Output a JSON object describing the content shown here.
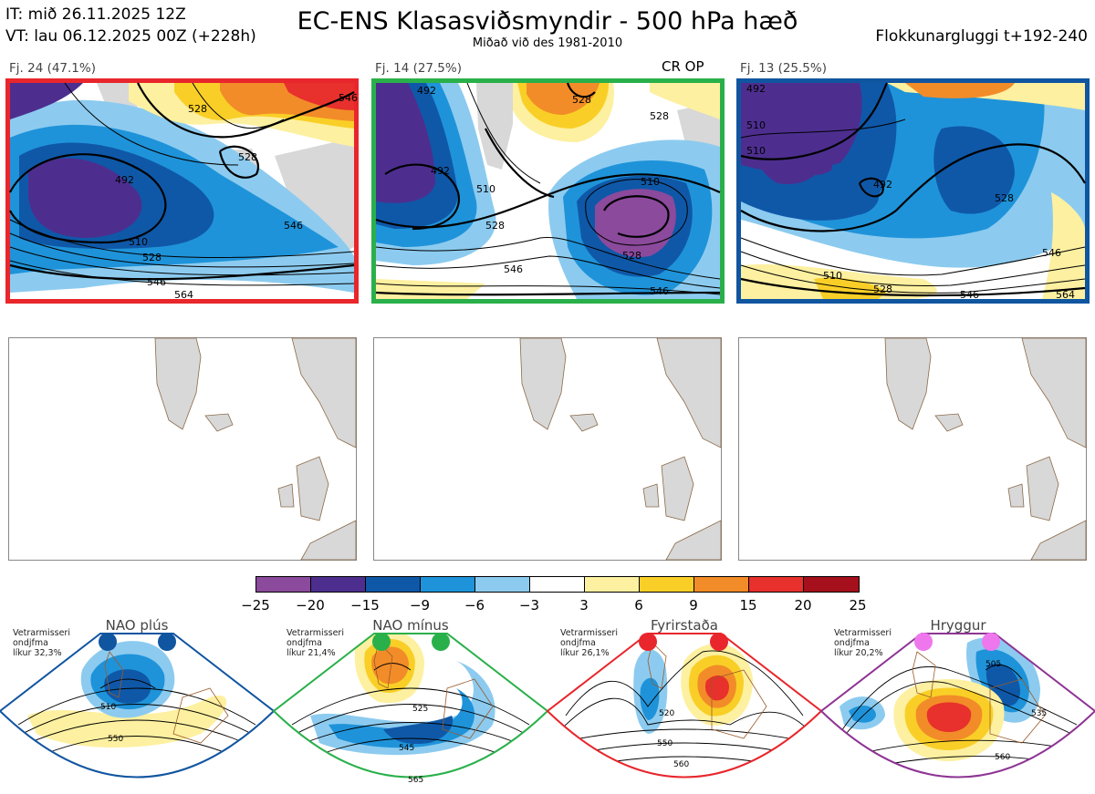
{
  "header": {
    "it": "IT: mið 26.11.2025 12Z",
    "vt": "VT: lau 06.12.2025 00Z  (+228h)",
    "title": "EC-ENS Klasasviðsmyndir - 500 hPa hæð",
    "subtitle": "Miðað við des 1981-2010",
    "window": "Flokkunargluggi t+192-240"
  },
  "clusters": [
    {
      "label": "Fj. 24 (47.1%)",
      "badge": "",
      "border_color": "#e8262b",
      "contour_labels": [
        "528",
        "546",
        "492",
        "528",
        "510",
        "528",
        "546",
        "546",
        "564"
      ]
    },
    {
      "label": "Fj. 14 (27.5%)",
      "badge": "CR OP",
      "border_color": "#2ab04a",
      "contour_labels": [
        "492",
        "528",
        "528",
        "510",
        "510",
        "492",
        "528",
        "528",
        "546",
        "546"
      ]
    },
    {
      "label": "Fj. 13 (25.5%)",
      "badge": "",
      "border_color": "#1055a0",
      "contour_labels": [
        "492",
        "510",
        "510",
        "492",
        "528",
        "546",
        "510",
        "528",
        "546",
        "564"
      ]
    }
  ],
  "colorbar": {
    "ticks": [
      "−25",
      "−20",
      "−15",
      "−9",
      "−6",
      "−3",
      "3",
      "6",
      "9",
      "15",
      "20",
      "25"
    ],
    "colors": [
      "#8b4a9c",
      "#4d2e8f",
      "#0f58a8",
      "#1f93d9",
      "#8ccbef",
      "#ffffff",
      "#fdf0a0",
      "#f9cf27",
      "#f28c28",
      "#e8302c",
      "#a5101c"
    ]
  },
  "regimes": [
    {
      "name": "NAO plús",
      "info": [
        "Vetrarmisseri",
        "ondjfma",
        "líkur 32,3%"
      ],
      "color": "#1055a0",
      "contour_labels": [
        "510",
        "550"
      ]
    },
    {
      "name": "NAO mínus",
      "info": [
        "Vetrarmisseri",
        "ondjfma",
        "líkur 21,4%"
      ],
      "color": "#2ab04a",
      "contour_labels": [
        "525",
        "545",
        "565"
      ]
    },
    {
      "name": "Fyrirstaða",
      "info": [
        "Vetrarmisseri",
        "ondjfma",
        "líkur 26,1%"
      ],
      "color": "#e8262b",
      "contour_labels": [
        "520",
        "550",
        "560"
      ]
    },
    {
      "name": "Hryggur",
      "info": [
        "Vetrarmisseri",
        "ondjfma",
        "líkur 20,2%"
      ],
      "color": "#8e3494",
      "dot_color": "#ee77ee",
      "contour_labels": [
        "505",
        "535",
        "560"
      ]
    }
  ]
}
